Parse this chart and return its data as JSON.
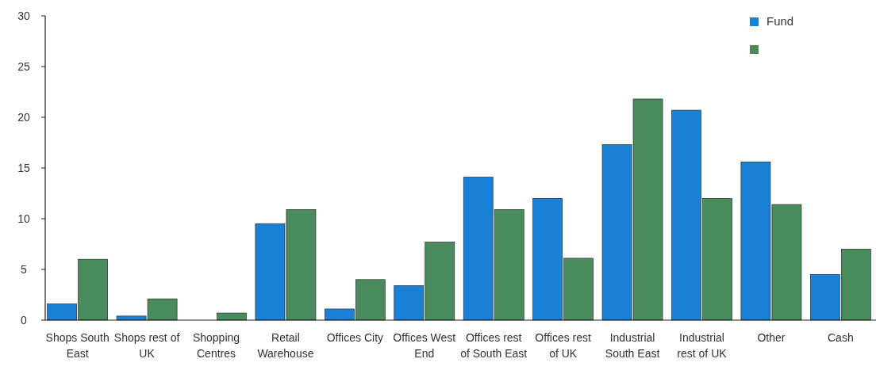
{
  "chart_data": {
    "type": "bar",
    "categories": [
      "Shops South East",
      "Shops rest of UK",
      "Shopping Centres",
      "Retail Warehouse",
      "Offices City",
      "Offices West End",
      "Offices rest of South East",
      "Offices rest of UK",
      "Industrial South East",
      "Industrial rest of UK",
      "Other",
      "Cash"
    ],
    "series": [
      {
        "name": "Fund",
        "color": "#1a80d6",
        "values": [
          1.6,
          0.4,
          0,
          9.5,
          1.1,
          3.4,
          14.1,
          12.0,
          17.3,
          20.7,
          15.6,
          4.5
        ]
      },
      {
        "color": "#4a8b5e",
        "values": [
          6.0,
          2.1,
          0.7,
          10.9,
          4.0,
          7.7,
          10.9,
          6.1,
          21.8,
          12.0,
          11.4,
          7.0
        ]
      }
    ],
    "ylim": [
      0,
      30
    ],
    "yticks": [
      0,
      5,
      10,
      15,
      20,
      25,
      30
    ],
    "grid": false,
    "legend": "top right"
  }
}
